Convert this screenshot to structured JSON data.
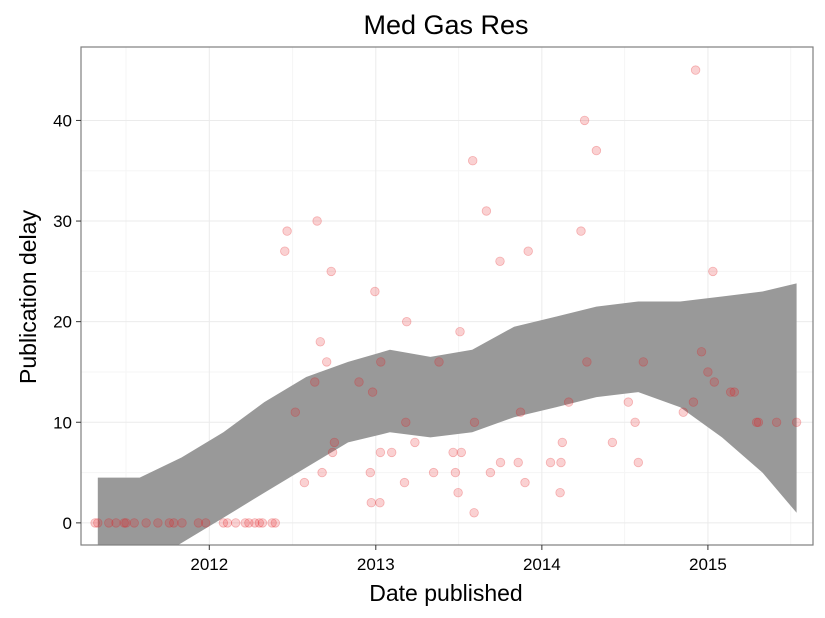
{
  "chart_data": {
    "type": "scatter",
    "title": "Med Gas Res",
    "xlabel": "Date published",
    "ylabel": "Publication delay",
    "xlim": [
      "2011-03-25",
      "2015-08-20"
    ],
    "ylim": [
      -2.2,
      47.3
    ],
    "x_ticks": [
      "2012-01-01",
      "2013-01-01",
      "2014-01-01",
      "2015-01-01"
    ],
    "x_tick_labels": [
      "2012",
      "2013",
      "2014",
      "2015"
    ],
    "y_ticks": [
      0,
      10,
      20,
      30,
      40
    ],
    "y_tick_labels": [
      "0",
      "10",
      "20",
      "30",
      "40"
    ],
    "grid": true,
    "point_color": "#e41a1c",
    "point_alpha": 0.2,
    "band_color": "#999999",
    "points": [
      {
        "date": "2011-04-25",
        "y": 0
      },
      {
        "date": "2011-05-01",
        "y": 0
      },
      {
        "date": "2011-05-25",
        "y": 0
      },
      {
        "date": "2011-06-10",
        "y": 0
      },
      {
        "date": "2011-06-28",
        "y": 0
      },
      {
        "date": "2011-07-02",
        "y": 0
      },
      {
        "date": "2011-07-20",
        "y": 0
      },
      {
        "date": "2011-08-15",
        "y": 0
      },
      {
        "date": "2011-09-10",
        "y": 0
      },
      {
        "date": "2011-10-05",
        "y": 0
      },
      {
        "date": "2011-10-15",
        "y": 0
      },
      {
        "date": "2011-11-02",
        "y": 0
      },
      {
        "date": "2011-12-08",
        "y": 0
      },
      {
        "date": "2011-12-24",
        "y": 0
      },
      {
        "date": "2012-02-01",
        "y": 0
      },
      {
        "date": "2012-02-10",
        "y": 0
      },
      {
        "date": "2012-02-28",
        "y": 0
      },
      {
        "date": "2012-03-20",
        "y": 0
      },
      {
        "date": "2012-03-28",
        "y": 0
      },
      {
        "date": "2012-04-10",
        "y": 0
      },
      {
        "date": "2012-04-20",
        "y": 0
      },
      {
        "date": "2012-04-27",
        "y": 0
      },
      {
        "date": "2012-05-18",
        "y": 0
      },
      {
        "date": "2012-05-25",
        "y": 0
      },
      {
        "date": "2012-06-15",
        "y": 27
      },
      {
        "date": "2012-06-20",
        "y": 29
      },
      {
        "date": "2012-07-08",
        "y": 11
      },
      {
        "date": "2012-07-28",
        "y": 4
      },
      {
        "date": "2012-08-20",
        "y": 14
      },
      {
        "date": "2012-08-25",
        "y": 30
      },
      {
        "date": "2012-09-01",
        "y": 18
      },
      {
        "date": "2012-09-05",
        "y": 5
      },
      {
        "date": "2012-09-15",
        "y": 16
      },
      {
        "date": "2012-09-25",
        "y": 25
      },
      {
        "date": "2012-09-28",
        "y": 7
      },
      {
        "date": "2012-10-02",
        "y": 8
      },
      {
        "date": "2012-11-25",
        "y": 14
      },
      {
        "date": "2012-12-20",
        "y": 5
      },
      {
        "date": "2012-12-22",
        "y": 2
      },
      {
        "date": "2012-12-25",
        "y": 13
      },
      {
        "date": "2012-12-30",
        "y": 23
      },
      {
        "date": "2013-01-10",
        "y": 2
      },
      {
        "date": "2013-01-11",
        "y": 7
      },
      {
        "date": "2013-01-12",
        "y": 16
      },
      {
        "date": "2013-02-05",
        "y": 7
      },
      {
        "date": "2013-03-05",
        "y": 4
      },
      {
        "date": "2013-03-10",
        "y": 20
      },
      {
        "date": "2013-03-08",
        "y": 10
      },
      {
        "date": "2013-03-28",
        "y": 8
      },
      {
        "date": "2013-05-08",
        "y": 5
      },
      {
        "date": "2013-05-20",
        "y": 16
      },
      {
        "date": "2013-06-20",
        "y": 7
      },
      {
        "date": "2013-06-25",
        "y": 5
      },
      {
        "date": "2013-07-01",
        "y": 3
      },
      {
        "date": "2013-07-05",
        "y": 19
      },
      {
        "date": "2013-07-08",
        "y": 7
      },
      {
        "date": "2013-08-02",
        "y": 36
      },
      {
        "date": "2013-08-05",
        "y": 1
      },
      {
        "date": "2013-08-06",
        "y": 10
      },
      {
        "date": "2013-09-01",
        "y": 31
      },
      {
        "date": "2013-09-10",
        "y": 5
      },
      {
        "date": "2013-10-01",
        "y": 26
      },
      {
        "date": "2013-10-02",
        "y": 6
      },
      {
        "date": "2013-11-10",
        "y": 6
      },
      {
        "date": "2013-11-15",
        "y": 11
      },
      {
        "date": "2013-11-25",
        "y": 4
      },
      {
        "date": "2013-12-02",
        "y": 27
      },
      {
        "date": "2014-01-20",
        "y": 6
      },
      {
        "date": "2014-02-10",
        "y": 3
      },
      {
        "date": "2014-02-12",
        "y": 6
      },
      {
        "date": "2014-02-15",
        "y": 8
      },
      {
        "date": "2014-03-01",
        "y": 12
      },
      {
        "date": "2014-03-28",
        "y": 29
      },
      {
        "date": "2014-04-05",
        "y": 40
      },
      {
        "date": "2014-04-10",
        "y": 16
      },
      {
        "date": "2014-05-01",
        "y": 37
      },
      {
        "date": "2014-06-05",
        "y": 8
      },
      {
        "date": "2014-07-10",
        "y": 12
      },
      {
        "date": "2014-07-25",
        "y": 10
      },
      {
        "date": "2014-08-01",
        "y": 6
      },
      {
        "date": "2014-08-12",
        "y": 16
      },
      {
        "date": "2014-11-08",
        "y": 11
      },
      {
        "date": "2014-11-30",
        "y": 12
      },
      {
        "date": "2014-12-05",
        "y": 45
      },
      {
        "date": "2014-12-18",
        "y": 17
      },
      {
        "date": "2015-01-01",
        "y": 15
      },
      {
        "date": "2015-01-15",
        "y": 14
      },
      {
        "date": "2015-01-12",
        "y": 25
      },
      {
        "date": "2015-02-20",
        "y": 13
      },
      {
        "date": "2015-02-28",
        "y": 13
      },
      {
        "date": "2015-04-18",
        "y": 10
      },
      {
        "date": "2015-04-22",
        "y": 10
      },
      {
        "date": "2015-06-01",
        "y": 10
      },
      {
        "date": "2015-07-15",
        "y": 10
      }
    ],
    "smooth_band": [
      {
        "date": "2011-05-01",
        "lower": -4.0,
        "upper": 4.5
      },
      {
        "date": "2011-08-01",
        "lower": -4.5,
        "upper": 4.5
      },
      {
        "date": "2011-11-01",
        "lower": -2.0,
        "upper": 6.5
      },
      {
        "date": "2012-02-01",
        "lower": 0.5,
        "upper": 9.0
      },
      {
        "date": "2012-05-01",
        "lower": 3.0,
        "upper": 12.0
      },
      {
        "date": "2012-08-01",
        "lower": 5.5,
        "upper": 14.5
      },
      {
        "date": "2012-11-01",
        "lower": 8.0,
        "upper": 16.0
      },
      {
        "date": "2013-02-01",
        "lower": 9.0,
        "upper": 17.2
      },
      {
        "date": "2013-05-01",
        "lower": 8.5,
        "upper": 16.5
      },
      {
        "date": "2013-08-01",
        "lower": 9.0,
        "upper": 17.2
      },
      {
        "date": "2013-11-01",
        "lower": 10.5,
        "upper": 19.5
      },
      {
        "date": "2014-02-01",
        "lower": 11.5,
        "upper": 20.5
      },
      {
        "date": "2014-05-01",
        "lower": 12.5,
        "upper": 21.5
      },
      {
        "date": "2014-08-01",
        "lower": 13.0,
        "upper": 22.0
      },
      {
        "date": "2014-11-01",
        "lower": 11.5,
        "upper": 22.0
      },
      {
        "date": "2015-02-01",
        "lower": 8.5,
        "upper": 22.5
      },
      {
        "date": "2015-05-01",
        "lower": 5.0,
        "upper": 23.0
      },
      {
        "date": "2015-07-15",
        "lower": 1.0,
        "upper": 23.8
      }
    ]
  }
}
